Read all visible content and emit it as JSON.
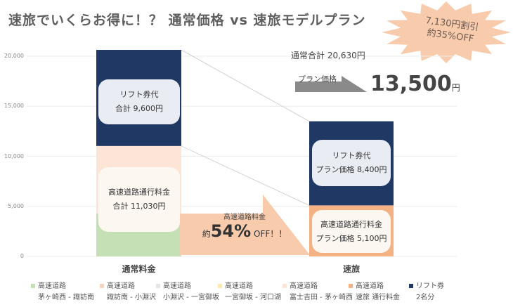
{
  "title": "速旅でいくらお得に！？ 通常価格 vs 速旅モデルプラン",
  "badge": {
    "line1": "7,130円割引",
    "line2": "約35%OFF"
  },
  "normal_total": "通常合計 20,630円",
  "plan_price_label": "プラン価格",
  "plan_price_value": "13,500",
  "plan_price_unit": "円",
  "callout": {
    "line1": "高速道路料金",
    "prefix": "約",
    "percent": "54%",
    "suffix": " OFF！！"
  },
  "colors": {
    "seg1": "#c5e0b4",
    "seg2": "#f6d2c0",
    "seg3": "#e5e5e5",
    "seg4": "#fce9b0",
    "seg5": "#fce4d6",
    "seg6": "#f4b183",
    "lift": "#203864",
    "arrow": "#f8cbad",
    "grey_arrow": "#8a8a8a",
    "burst": "#f8cbad"
  },
  "chart_data": {
    "type": "bar",
    "stacked": true,
    "ylim": [
      0,
      20000
    ],
    "yticks": [
      0,
      5000,
      10000,
      15000,
      20000
    ],
    "ytick_labels": [
      "0",
      "5,000",
      "10,000",
      "15,000",
      "20,000"
    ],
    "categories": [
      "通常料金",
      "速旅"
    ],
    "series": [
      {
        "name": "高速道路",
        "route": "茅ヶ崎西 - 諏訪南",
        "color_key": "seg1",
        "values": [
          4300,
          0
        ]
      },
      {
        "name": "高速道路",
        "route": "諏訪南 - 小淵沢",
        "color_key": "seg2",
        "values": [
          0,
          0
        ]
      },
      {
        "name": "高速道路",
        "route": "小淵沢 - 一宮御坂",
        "color_key": "seg3",
        "values": [
          0,
          0
        ]
      },
      {
        "name": "高速道路",
        "route": "一宮御坂 - 河口湖",
        "color_key": "seg4",
        "values": [
          0,
          0
        ]
      },
      {
        "name": "高速道路",
        "route": "富士吉田 - 茅ヶ崎西",
        "color_key": "seg5",
        "values": [
          6730,
          0
        ]
      },
      {
        "name": "高速道路",
        "route": "速旅 通行料金",
        "color_key": "seg6",
        "values": [
          0,
          5100
        ]
      },
      {
        "name": "リフト券",
        "route": "2名分",
        "color_key": "lift",
        "values": [
          9600,
          8400
        ]
      }
    ],
    "annotations": {
      "normal_lift": [
        "リフト券代",
        "合計 9,600円"
      ],
      "normal_highway": [
        "高速道路通行料金",
        "合計 11,030円"
      ],
      "plan_lift": [
        "リフト券代",
        "プラン価格 8,400円"
      ],
      "plan_highway": [
        "高速道路通行料金",
        "プラン価格 5,100円"
      ]
    }
  }
}
